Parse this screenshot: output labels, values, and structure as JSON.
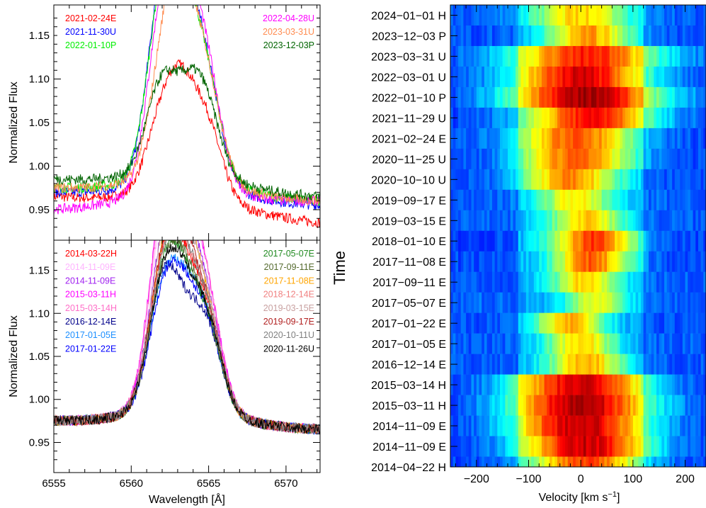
{
  "chart_data": [
    {
      "type": "line",
      "panel": "top-left",
      "ylabel": "Normalized Flux",
      "xlim": [
        6555,
        6572.2
      ],
      "ylim": [
        0.915,
        1.185
      ],
      "yticks": [
        "0.95",
        "1.00",
        "1.05",
        "1.10",
        "1.15"
      ],
      "legend_placement": "top-left and top-right",
      "series": [
        {
          "name": "2021-02-24E",
          "color": "#ff0000",
          "base": 0.965,
          "end": 0.935,
          "peaks": [
            [
              6561.8,
              1.02
            ],
            [
              6563.2,
              1.058
            ],
            [
              6564.9,
              1.025
            ]
          ]
        },
        {
          "name": "2021-11-30U",
          "color": "#0000ff",
          "base": 0.97,
          "end": 0.955,
          "peaks": [
            [
              6561.9,
              1.15
            ],
            [
              6563.3,
              1.15
            ],
            [
              6564.9,
              1.07
            ]
          ]
        },
        {
          "name": "2022-01-10P",
          "color": "#00ee00",
          "base": 0.975,
          "end": 0.96,
          "peaks": [
            [
              6561.9,
              1.145
            ],
            [
              6563.3,
              1.14
            ],
            [
              6564.9,
              1.07
            ]
          ]
        },
        {
          "name": "2022-04-28U",
          "color": "#ff00ff",
          "base": 0.95,
          "end": 0.96,
          "peaks": [
            [
              6561.9,
              1.12
            ],
            [
              6563.3,
              1.155
            ],
            [
              6564.9,
              1.08
            ]
          ]
        },
        {
          "name": "2023-03-31U",
          "color": "#ff8c50",
          "base": 0.975,
          "end": 0.96,
          "peaks": [
            [
              6562.1,
              1.083
            ],
            [
              6563.3,
              1.14
            ],
            [
              6564.9,
              1.07
            ]
          ]
        },
        {
          "name": "2023-12-03P",
          "color": "#006400",
          "base": 0.985,
          "end": 0.965,
          "peaks": [
            [
              6561.9,
              1.072
            ],
            [
              6563.6,
              1.04
            ],
            [
              6564.8,
              1.045
            ]
          ]
        }
      ]
    },
    {
      "type": "line",
      "panel": "bottom-left",
      "xlabel": "Wavelength [Å]",
      "ylabel": "Normalized Flux",
      "xlim": [
        6555,
        6572.2
      ],
      "ylim": [
        0.915,
        1.185
      ],
      "xticks": [
        "6555",
        "6560",
        "6565",
        "6570"
      ],
      "yticks": [
        "0.95",
        "1.00",
        "1.05",
        "1.10",
        "1.15"
      ],
      "legend_placement": "top-left and top-right",
      "series": [
        {
          "name": "2014-03-22H",
          "color": "#ff0000",
          "base": 0.975,
          "end": 0.965,
          "peaks": [
            [
              6562.0,
              1.11
            ],
            [
              6563.3,
              1.09
            ],
            [
              6564.9,
              1.07
            ]
          ]
        },
        {
          "name": "2014-11-09E",
          "color": "#ffb4ff",
          "base": 0.975,
          "end": 0.965,
          "peaks": [
            [
              6562.0,
              1.14
            ],
            [
              6563.3,
              1.16
            ],
            [
              6564.9,
              1.09
            ]
          ]
        },
        {
          "name": "2014-11-09E",
          "color": "#a020f0",
          "base": 0.975,
          "end": 0.965,
          "peaks": [
            [
              6562.0,
              1.12
            ],
            [
              6563.3,
              1.14
            ],
            [
              6564.9,
              1.08
            ]
          ]
        },
        {
          "name": "2015-03-11H",
          "color": "#ff00ff",
          "base": 0.975,
          "end": 0.965,
          "peaks": [
            [
              6562.0,
              1.16
            ],
            [
              6563.3,
              1.16
            ],
            [
              6564.9,
              1.09
            ]
          ]
        },
        {
          "name": "2015-03-14H",
          "color": "#ff6ec8",
          "base": 0.975,
          "end": 0.965,
          "peaks": [
            [
              6562.0,
              1.15
            ],
            [
              6563.3,
              1.165
            ],
            [
              6564.9,
              1.09
            ]
          ]
        },
        {
          "name": "2016-12-14E",
          "color": "#00008b",
          "base": 0.975,
          "end": 0.965,
          "peaks": [
            [
              6561.9,
              1.1
            ],
            [
              6563.3,
              1.05
            ],
            [
              6564.9,
              1.06
            ]
          ]
        },
        {
          "name": "2017-01-05E",
          "color": "#1e90ff",
          "base": 0.975,
          "end": 0.965,
          "peaks": [
            [
              6562.0,
              1.09
            ],
            [
              6563.4,
              1.07
            ],
            [
              6564.9,
              1.06
            ]
          ]
        },
        {
          "name": "2017-01-22E",
          "color": "#0000ff",
          "base": 0.975,
          "end": 0.965,
          "peaks": [
            [
              6562.0,
              1.08
            ],
            [
              6563.3,
              1.07
            ],
            [
              6564.9,
              1.06
            ]
          ]
        },
        {
          "name": "2017-05-07E",
          "color": "#228b22",
          "base": 0.975,
          "end": 0.965,
          "peaks": [
            [
              6562.0,
              1.1
            ],
            [
              6563.3,
              1.08
            ],
            [
              6564.9,
              1.06
            ]
          ]
        },
        {
          "name": "2017-09-11E",
          "color": "#556b2f",
          "base": 0.975,
          "end": 0.965,
          "peaks": [
            [
              6562.0,
              1.09
            ],
            [
              6563.3,
              1.09
            ],
            [
              6564.9,
              1.06
            ]
          ]
        },
        {
          "name": "2017-11-08E",
          "color": "#ffa500",
          "base": 0.975,
          "end": 0.965,
          "peaks": [
            [
              6562.0,
              1.1
            ],
            [
              6563.3,
              1.14
            ],
            [
              6564.9,
              1.07
            ]
          ]
        },
        {
          "name": "2018-12-14E",
          "color": "#f08080",
          "base": 0.975,
          "end": 0.965,
          "peaks": [
            [
              6562.0,
              1.1
            ],
            [
              6563.3,
              1.1
            ],
            [
              6564.9,
              1.07
            ]
          ]
        },
        {
          "name": "2019-03-15E",
          "color": "#c8a0a0",
          "base": 0.975,
          "end": 0.965,
          "peaks": [
            [
              6562.0,
              1.12
            ],
            [
              6563.3,
              1.12
            ],
            [
              6564.9,
              1.08
            ]
          ]
        },
        {
          "name": "2019-09-17E",
          "color": "#b22222",
          "base": 0.975,
          "end": 0.965,
          "peaks": [
            [
              6562.0,
              1.11
            ],
            [
              6563.3,
              1.11
            ],
            [
              6564.9,
              1.07
            ]
          ]
        },
        {
          "name": "2020-10-11U",
          "color": "#808080",
          "base": 0.975,
          "end": 0.965,
          "peaks": [
            [
              6562.0,
              1.1
            ],
            [
              6563.3,
              1.1
            ],
            [
              6564.9,
              1.07
            ]
          ]
        },
        {
          "name": "2020-11-26U",
          "color": "#000000",
          "base": 0.975,
          "end": 0.965,
          "peaks": [
            [
              6562.0,
              1.095
            ],
            [
              6563.3,
              1.075
            ],
            [
              6564.9,
              1.065
            ]
          ]
        }
      ]
    },
    {
      "type": "heatmap",
      "panel": "right",
      "xlabel": "Velocity [km s",
      "xlabel_sup": "−1",
      "xlabel_end": "]",
      "ylabel": "Time",
      "xlim": [
        -250,
        240
      ],
      "xticks": [
        -200,
        -100,
        0,
        100,
        200
      ],
      "xtick_labels": [
        "−200",
        "−100",
        "0",
        "100",
        "200"
      ],
      "colormap": "jet",
      "rows": [
        {
          "label": "2024−01−01 H",
          "width": 0.7,
          "shift": 0,
          "strength": 0.55
        },
        {
          "label": "2023−12−03 P",
          "width": 0.6,
          "shift": 15,
          "strength": 0.62
        },
        {
          "label": "2023−03−31 U",
          "width": 1.1,
          "shift": 10,
          "strength": 0.8
        },
        {
          "label": "2022−03−01 U",
          "width": 1.0,
          "shift": 0,
          "strength": 0.88
        },
        {
          "label": "2022−01−10 P",
          "width": 1.15,
          "shift": 10,
          "strength": 0.95
        },
        {
          "label": "2021−11−29 U",
          "width": 0.95,
          "shift": 20,
          "strength": 0.82
        },
        {
          "label": "2021−02−24 E",
          "width": 0.85,
          "shift": -10,
          "strength": 0.72
        },
        {
          "label": "2020−11−25 U",
          "width": 0.8,
          "shift": -10,
          "strength": 0.7
        },
        {
          "label": "2020−10−10 U",
          "width": 0.7,
          "shift": -20,
          "strength": 0.65
        },
        {
          "label": "2019−09−17 E",
          "width": 0.55,
          "shift": -10,
          "strength": 0.5
        },
        {
          "label": "2019−03−15 E",
          "width": 0.55,
          "shift": 10,
          "strength": 0.55
        },
        {
          "label": "2018−01−10 E",
          "width": 0.6,
          "shift": 25,
          "strength": 0.75
        },
        {
          "label": "2017−11−08 E",
          "width": 0.55,
          "shift": 20,
          "strength": 0.7
        },
        {
          "label": "2017−09−11 E",
          "width": 0.5,
          "shift": 10,
          "strength": 0.55
        },
        {
          "label": "2017−05−07 E",
          "width": 0.45,
          "shift": 30,
          "strength": 0.45
        },
        {
          "label": "2017−01−22 E",
          "width": 0.5,
          "shift": -20,
          "strength": 0.6
        },
        {
          "label": "2017−01−05 E",
          "width": 0.5,
          "shift": 0,
          "strength": 0.55
        },
        {
          "label": "2016−12−14 E",
          "width": 0.55,
          "shift": 10,
          "strength": 0.6
        },
        {
          "label": "2015−03−14 H",
          "width": 1.0,
          "shift": 0,
          "strength": 0.9
        },
        {
          "label": "2015−03−11 H",
          "width": 1.05,
          "shift": 0,
          "strength": 0.95
        },
        {
          "label": "2014−11−09 E",
          "width": 1.0,
          "shift": 0,
          "strength": 0.92
        },
        {
          "label": "2014−11−09 E",
          "width": 0.95,
          "shift": 10,
          "strength": 0.9
        },
        {
          "label": "2014−04−22 H",
          "width": 0.8,
          "shift": 10,
          "strength": 0.75
        }
      ]
    }
  ]
}
